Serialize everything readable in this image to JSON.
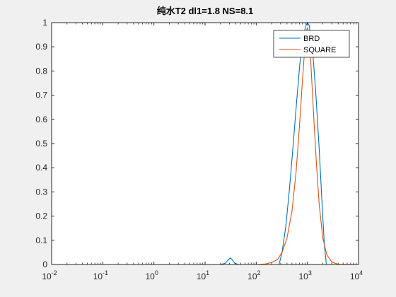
{
  "chart_data": {
    "type": "line",
    "title": "纯水T2 dl1=1.8 NS=8.1",
    "xlabel": "",
    "ylabel": "",
    "xscale": "log",
    "xlim": [
      0.01,
      10000
    ],
    "ylim": [
      0,
      1
    ],
    "xticks": [
      {
        "base": "10",
        "exp": "-2",
        "value": 0.01
      },
      {
        "base": "10",
        "exp": "-1",
        "value": 0.1
      },
      {
        "base": "10",
        "exp": "0",
        "value": 1
      },
      {
        "base": "10",
        "exp": "1",
        "value": 10
      },
      {
        "base": "10",
        "exp": "2",
        "value": 100
      },
      {
        "base": "10",
        "exp": "3",
        "value": 1000
      },
      {
        "base": "10",
        "exp": "4",
        "value": 10000
      }
    ],
    "yticks": [
      "0",
      "0.1",
      "0.2",
      "0.3",
      "0.4",
      "0.5",
      "0.6",
      "0.7",
      "0.8",
      "0.9",
      "1"
    ],
    "grid": false,
    "legend_position": "top-right",
    "series": [
      {
        "name": "BRD",
        "color": "#0072BD",
        "x": [
          0.01,
          20,
          25,
          28,
          31,
          34,
          38,
          45,
          280,
          320,
          380,
          450,
          530,
          620,
          720,
          830,
          950,
          1000,
          1080,
          1250,
          1450,
          1700,
          1950,
          2150,
          2350,
          10000
        ],
        "y": [
          0,
          0,
          0.005,
          0.018,
          0.027,
          0.02,
          0.005,
          0,
          0,
          0.05,
          0.16,
          0.32,
          0.5,
          0.68,
          0.84,
          0.95,
          0.99,
          1.0,
          0.99,
          0.9,
          0.72,
          0.48,
          0.24,
          0.08,
          0,
          0
        ]
      },
      {
        "name": "SQUARE",
        "color": "#D95319",
        "x": [
          0.01,
          100,
          150,
          200,
          260,
          320,
          400,
          500,
          600,
          700,
          800,
          880,
          950,
          1000,
          1050,
          1150,
          1300,
          1500,
          1700,
          2000,
          2400,
          3000,
          4000,
          10000
        ],
        "y": [
          0,
          0,
          0.002,
          0.008,
          0.02,
          0.05,
          0.11,
          0.22,
          0.38,
          0.57,
          0.76,
          0.88,
          0.96,
          0.98,
          0.96,
          0.86,
          0.65,
          0.42,
          0.25,
          0.11,
          0.04,
          0.01,
          0.001,
          0
        ]
      }
    ]
  }
}
